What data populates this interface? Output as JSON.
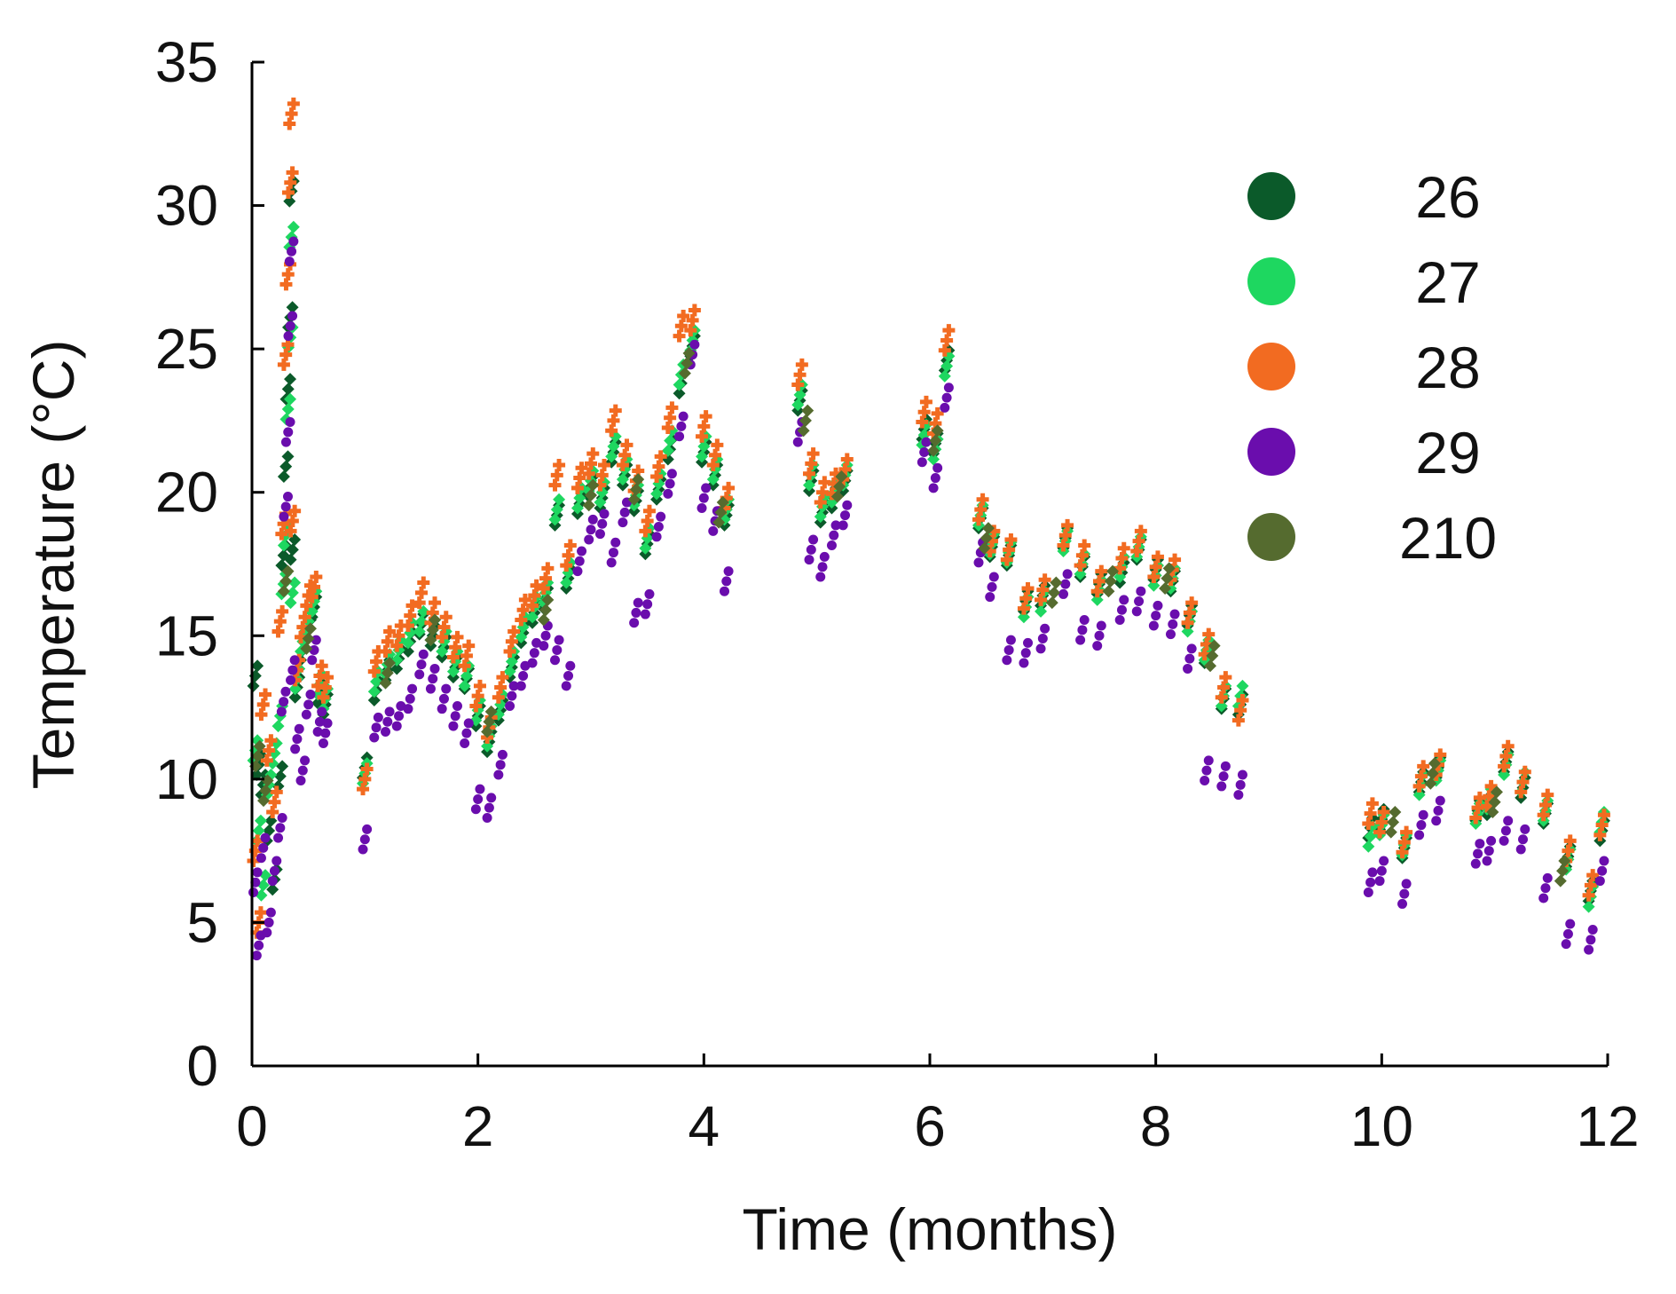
{
  "chart_data": {
    "type": "scatter",
    "title": "",
    "xlabel": "Time (months)",
    "ylabel": "Temperature (°C)",
    "xlim": [
      0,
      12
    ],
    "ylim": [
      0,
      35
    ],
    "xticks": [
      "0",
      "2",
      "4",
      "6",
      "8",
      "10",
      "12"
    ],
    "yticks": [
      "0",
      "5",
      "10",
      "15",
      "20",
      "25",
      "30",
      "35"
    ],
    "grid": false,
    "legend_position": "top-right",
    "series": [
      {
        "name": "26",
        "color": "#0b5a2a",
        "marker": "diamond",
        "x": [
          0.03,
          0.06,
          0.1,
          0.15,
          0.2,
          0.25,
          0.28,
          0.3,
          0.32,
          0.34,
          0.35,
          0.36,
          0.4,
          0.45,
          0.5,
          0.55,
          0.6,
          0.65,
          1.0,
          1.1,
          1.2,
          1.3,
          1.4,
          1.5,
          1.6,
          1.7,
          1.8,
          1.9,
          2.0,
          2.1,
          2.2,
          2.3,
          2.4,
          2.5,
          2.6,
          2.7,
          2.8,
          2.9,
          3.0,
          3.1,
          3.2,
          3.3,
          3.4,
          3.5,
          3.6,
          3.7,
          3.8,
          3.9,
          4.0,
          4.1,
          4.2,
          4.85,
          4.95,
          5.05,
          5.15,
          5.25,
          5.95,
          6.05,
          6.15,
          6.45,
          6.55,
          6.7,
          6.85,
          7.0,
          7.2,
          7.35,
          7.5,
          7.7,
          7.85,
          8.0,
          8.15,
          8.3,
          8.45,
          8.6,
          8.75,
          9.9,
          10.0,
          10.2,
          10.35,
          10.5,
          10.85,
          10.95,
          11.1,
          11.25,
          11.45,
          11.65,
          11.85,
          11.95
        ],
        "y": [
          13.6,
          10.5,
          9.8,
          8.2,
          6.5,
          10.1,
          17.8,
          20.9,
          23.6,
          26.1,
          30.5,
          18.0,
          13.2,
          14.5,
          15.2,
          16.0,
          13.0,
          12.6,
          10.4,
          13.1,
          13.8,
          14.2,
          14.8,
          15.4,
          15.0,
          14.6,
          13.9,
          13.5,
          12.2,
          11.3,
          12.4,
          13.9,
          15.1,
          15.8,
          16.3,
          19.2,
          17.0,
          19.6,
          20.2,
          19.8,
          21.4,
          20.6,
          19.7,
          18.2,
          20.1,
          21.5,
          23.8,
          25.1,
          21.4,
          20.6,
          19.2,
          23.2,
          20.4,
          19.3,
          19.8,
          20.4,
          22.2,
          21.7,
          24.6,
          19.1,
          18.1,
          17.8,
          16.2,
          16.4,
          18.4,
          17.4,
          16.8,
          17.2,
          18.0,
          17.3,
          16.9,
          15.7,
          14.4,
          12.8,
          12.6,
          8.3,
          8.6,
          7.6,
          9.9,
          10.4,
          8.9,
          9.1,
          10.6,
          9.7,
          8.8,
          7.3,
          6.1,
          8.2
        ]
      },
      {
        "name": "27",
        "color": "#1ed760",
        "marker": "diamond",
        "x": [
          0.03,
          0.06,
          0.1,
          0.15,
          0.2,
          0.25,
          0.28,
          0.3,
          0.32,
          0.34,
          0.35,
          0.36,
          0.4,
          0.45,
          0.5,
          0.55,
          0.6,
          0.65,
          1.0,
          1.1,
          1.2,
          1.3,
          1.4,
          1.5,
          1.6,
          1.7,
          1.8,
          1.9,
          2.0,
          2.1,
          2.2,
          2.3,
          2.4,
          2.5,
          2.6,
          2.7,
          2.8,
          2.9,
          3.0,
          3.1,
          3.2,
          3.3,
          3.4,
          3.5,
          3.6,
          3.7,
          3.8,
          3.9,
          4.0,
          4.1,
          4.2,
          4.85,
          4.95,
          5.05,
          5.15,
          5.25,
          5.95,
          6.05,
          6.15,
          6.45,
          6.55,
          6.7,
          6.85,
          7.0,
          7.2,
          7.35,
          7.5,
          7.7,
          7.85,
          8.0,
          8.15,
          8.3,
          8.45,
          8.6,
          8.75,
          9.9,
          10.0,
          10.2,
          10.35,
          10.5,
          10.85,
          10.95,
          11.1,
          11.25,
          11.45,
          11.65,
          11.85,
          11.95
        ],
        "y": [
          11.0,
          8.2,
          6.3,
          9.8,
          10.9,
          12.2,
          16.8,
          18.5,
          22.9,
          25.4,
          28.9,
          16.5,
          13.5,
          14.8,
          15.5,
          16.2,
          13.3,
          12.8,
          10.2,
          13.4,
          14.0,
          14.5,
          15.1,
          15.5,
          15.2,
          14.8,
          14.1,
          13.6,
          12.4,
          11.5,
          12.6,
          14.1,
          15.3,
          16.0,
          16.5,
          19.4,
          17.2,
          19.8,
          20.4,
          20.0,
          21.6,
          20.8,
          19.9,
          18.4,
          20.3,
          21.8,
          24.1,
          25.3,
          21.6,
          20.8,
          19.4,
          23.4,
          20.6,
          19.5,
          20.0,
          20.6,
          22.0,
          21.5,
          24.4,
          19.2,
          18.2,
          17.9,
          16.0,
          16.2,
          18.3,
          17.5,
          16.6,
          17.4,
          18.1,
          17.1,
          17.0,
          15.5,
          14.5,
          12.9,
          12.9,
          8.0,
          8.4,
          7.7,
          9.8,
          10.3,
          8.8,
          9.3,
          10.5,
          9.9,
          8.9,
          7.2,
          5.9,
          8.5
        ]
      },
      {
        "name": "28",
        "color": "#f26b21",
        "marker": "plus",
        "x": [
          0.03,
          0.06,
          0.1,
          0.15,
          0.2,
          0.25,
          0.28,
          0.3,
          0.32,
          0.34,
          0.35,
          0.36,
          0.4,
          0.45,
          0.5,
          0.55,
          0.6,
          0.65,
          1.0,
          1.1,
          1.2,
          1.3,
          1.4,
          1.5,
          1.6,
          1.7,
          1.8,
          1.9,
          2.0,
          2.1,
          2.2,
          2.3,
          2.4,
          2.5,
          2.6,
          2.7,
          2.8,
          2.9,
          3.0,
          3.1,
          3.2,
          3.3,
          3.4,
          3.5,
          3.6,
          3.7,
          3.8,
          3.9,
          4.0,
          4.1,
          4.2,
          4.85,
          4.95,
          5.05,
          5.15,
          5.25,
          5.95,
          6.05,
          6.15,
          6.45,
          6.55,
          6.7,
          6.85,
          7.0,
          7.2,
          7.35,
          7.5,
          7.7,
          7.85,
          8.0,
          8.15,
          8.3,
          8.45,
          8.6,
          8.75,
          9.9,
          10.0,
          10.2,
          10.35,
          10.5,
          10.85,
          10.95,
          11.1,
          11.25,
          11.45,
          11.65,
          11.85,
          11.95
        ],
        "y": [
          7.5,
          5.0,
          12.6,
          11.0,
          9.2,
          15.5,
          18.9,
          24.8,
          27.6,
          30.8,
          33.2,
          19.0,
          13.8,
          15.3,
          16.4,
          16.7,
          13.6,
          13.2,
          10.0,
          14.1,
          14.8,
          15.0,
          15.7,
          16.5,
          15.8,
          15.3,
          14.6,
          14.3,
          12.9,
          11.8,
          13.2,
          14.8,
          15.9,
          16.4,
          17.0,
          20.6,
          17.8,
          20.5,
          21.0,
          20.6,
          22.5,
          21.3,
          20.4,
          19.0,
          20.9,
          22.6,
          25.8,
          26.0,
          22.3,
          21.3,
          19.8,
          24.1,
          21.0,
          20.0,
          20.3,
          20.8,
          22.8,
          22.4,
          25.3,
          19.4,
          18.3,
          18.0,
          16.3,
          16.6,
          18.5,
          17.8,
          16.9,
          17.7,
          18.3,
          17.4,
          17.3,
          15.8,
          14.7,
          13.2,
          12.4,
          8.8,
          8.5,
          7.8,
          10.1,
          10.5,
          9.0,
          9.4,
          10.8,
          9.9,
          9.1,
          7.5,
          6.3,
          8.4
        ]
      },
      {
        "name": "29",
        "color": "#6a0dad",
        "marker": "circle",
        "x": [
          0.03,
          0.06,
          0.1,
          0.15,
          0.2,
          0.25,
          0.28,
          0.3,
          0.32,
          0.34,
          0.35,
          0.36,
          0.4,
          0.45,
          0.5,
          0.55,
          0.6,
          0.65,
          1.0,
          1.1,
          1.2,
          1.3,
          1.4,
          1.5,
          1.6,
          1.7,
          1.8,
          1.9,
          2.0,
          2.1,
          2.2,
          2.3,
          2.4,
          2.5,
          2.6,
          2.7,
          2.8,
          2.9,
          3.0,
          3.1,
          3.2,
          3.3,
          3.4,
          3.5,
          3.6,
          3.7,
          3.8,
          3.9,
          4.0,
          4.1,
          4.2,
          4.85,
          4.95,
          5.05,
          5.15,
          5.25,
          5.95,
          6.05,
          6.15,
          6.45,
          6.55,
          6.7,
          6.85,
          7.0,
          7.2,
          7.35,
          7.5,
          7.7,
          7.85,
          8.0,
          8.15,
          8.3,
          8.45,
          8.6,
          8.75,
          9.9,
          10.0,
          10.2,
          10.35,
          10.5,
          10.85,
          10.95,
          11.1,
          11.25,
          11.45,
          11.65,
          11.85,
          11.95
        ],
        "y": [
          6.4,
          4.2,
          7.6,
          5.0,
          6.8,
          8.3,
          12.7,
          19.5,
          22.1,
          25.8,
          28.4,
          13.8,
          11.4,
          10.3,
          12.6,
          14.5,
          12.0,
          11.6,
          7.9,
          11.8,
          12.0,
          12.2,
          12.8,
          14.0,
          13.5,
          12.8,
          12.2,
          11.6,
          9.3,
          9.0,
          10.5,
          12.9,
          13.6,
          14.4,
          15.0,
          14.5,
          13.6,
          17.6,
          18.7,
          18.9,
          17.9,
          19.3,
          15.8,
          16.1,
          18.8,
          20.3,
          22.3,
          24.8,
          19.8,
          19.0,
          16.9,
          22.1,
          18.0,
          17.4,
          18.5,
          19.2,
          21.4,
          20.5,
          23.3,
          17.9,
          16.7,
          14.5,
          14.4,
          14.9,
          16.8,
          15.2,
          15.0,
          15.9,
          16.2,
          15.7,
          15.4,
          14.2,
          10.3,
          10.1,
          9.8,
          6.4,
          6.8,
          6.0,
          8.4,
          8.9,
          7.4,
          7.5,
          8.2,
          7.9,
          6.2,
          4.6,
          4.4,
          6.8
        ]
      },
      {
        "name": "210",
        "color": "#556b2f",
        "marker": "diamond",
        "x": [
          0.05,
          0.12,
          0.3,
          0.5,
          1.2,
          1.6,
          2.1,
          2.6,
          3.0,
          3.4,
          3.85,
          4.15,
          4.9,
          5.2,
          6.05,
          6.5,
          7.1,
          7.6,
          8.1,
          8.5,
          10.1,
          10.45,
          11.0,
          11.6
        ],
        "y": [
          10.8,
          9.6,
          16.9,
          14.9,
          13.7,
          15.2,
          12.0,
          15.9,
          19.9,
          20.1,
          24.5,
          19.3,
          22.5,
          20.2,
          21.8,
          18.4,
          16.5,
          16.9,
          17.0,
          14.3,
          8.5,
          10.2,
          9.2,
          6.8
        ]
      }
    ]
  }
}
